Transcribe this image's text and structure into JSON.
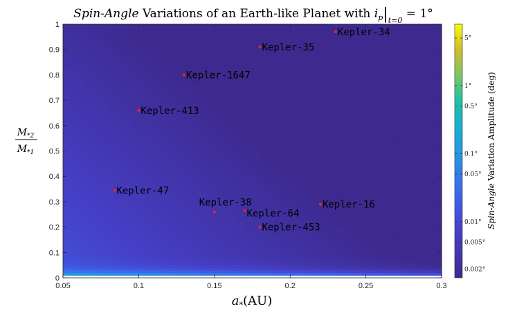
{
  "title": {
    "italic": "Spin-Angle",
    "rest": "Variations of an Earth-like Planet with",
    "sym": "i",
    "sub": "p",
    "eval_sub": "t=0",
    "eq": "= 1°"
  },
  "chart_data": {
    "type": "heatmap",
    "xlabel": {
      "sym": "a",
      "sub": "*",
      "unit": "(AU)"
    },
    "ylabel": {
      "num": "M",
      "num_sub": "*2",
      "den": "M",
      "den_sub": "*1"
    },
    "xlim": [
      0.05,
      0.3
    ],
    "ylim": [
      0,
      1
    ],
    "x_ticks": [
      0.05,
      0.1,
      0.15,
      0.2,
      0.25,
      0.3
    ],
    "x_tick_labels": [
      "0.05",
      "0.1",
      "0.15",
      "0.2",
      "0.25",
      "0.3"
    ],
    "y_ticks": [
      0,
      0.1,
      0.2,
      0.3,
      0.4,
      0.5,
      0.6,
      0.7,
      0.8,
      0.9,
      1
    ],
    "y_tick_labels": [
      "0",
      "0.1",
      "0.2",
      "0.3",
      "0.4",
      "0.5",
      "0.6",
      "0.7",
      "0.8",
      "0.9",
      "1"
    ],
    "colorbar": {
      "label_italic": "Spin-Angle",
      "label_rest": "Variation Amplitude (deg)",
      "scale": "log",
      "range_deg": [
        0.0015,
        8
      ],
      "ticks": [
        {
          "value": 5,
          "label": "5°"
        },
        {
          "value": 1,
          "label": "1°"
        },
        {
          "value": 0.5,
          "label": "0.5°"
        },
        {
          "value": 0.1,
          "label": "0.1°"
        },
        {
          "value": 0.05,
          "label": "0.05°"
        },
        {
          "value": 0.01,
          "label": "0.01°"
        },
        {
          "value": 0.005,
          "label": "0.005°"
        },
        {
          "value": 0.002,
          "label": "0.002°"
        }
      ]
    },
    "points": [
      {
        "name": "Kepler-34",
        "x": 0.23,
        "y": 0.97,
        "label_pos": "right"
      },
      {
        "name": "Kepler-35",
        "x": 0.18,
        "y": 0.91,
        "label_pos": "right"
      },
      {
        "name": "Kepler-1647",
        "x": 0.13,
        "y": 0.8,
        "label_pos": "right"
      },
      {
        "name": "Kepler-413",
        "x": 0.1,
        "y": 0.66,
        "label_pos": "right"
      },
      {
        "name": "Kepler-47",
        "x": 0.084,
        "y": 0.345,
        "label_pos": "right"
      },
      {
        "name": "Kepler-38",
        "x": 0.15,
        "y": 0.26,
        "label_pos": "above"
      },
      {
        "name": "Kepler-64",
        "x": 0.17,
        "y": 0.265,
        "label_pos": "right-below"
      },
      {
        "name": "Kepler-16",
        "x": 0.22,
        "y": 0.29,
        "label_pos": "right"
      },
      {
        "name": "Kepler-453",
        "x": 0.18,
        "y": 0.2,
        "label_pos": "right"
      }
    ],
    "marker_color": "#e8262a"
  }
}
